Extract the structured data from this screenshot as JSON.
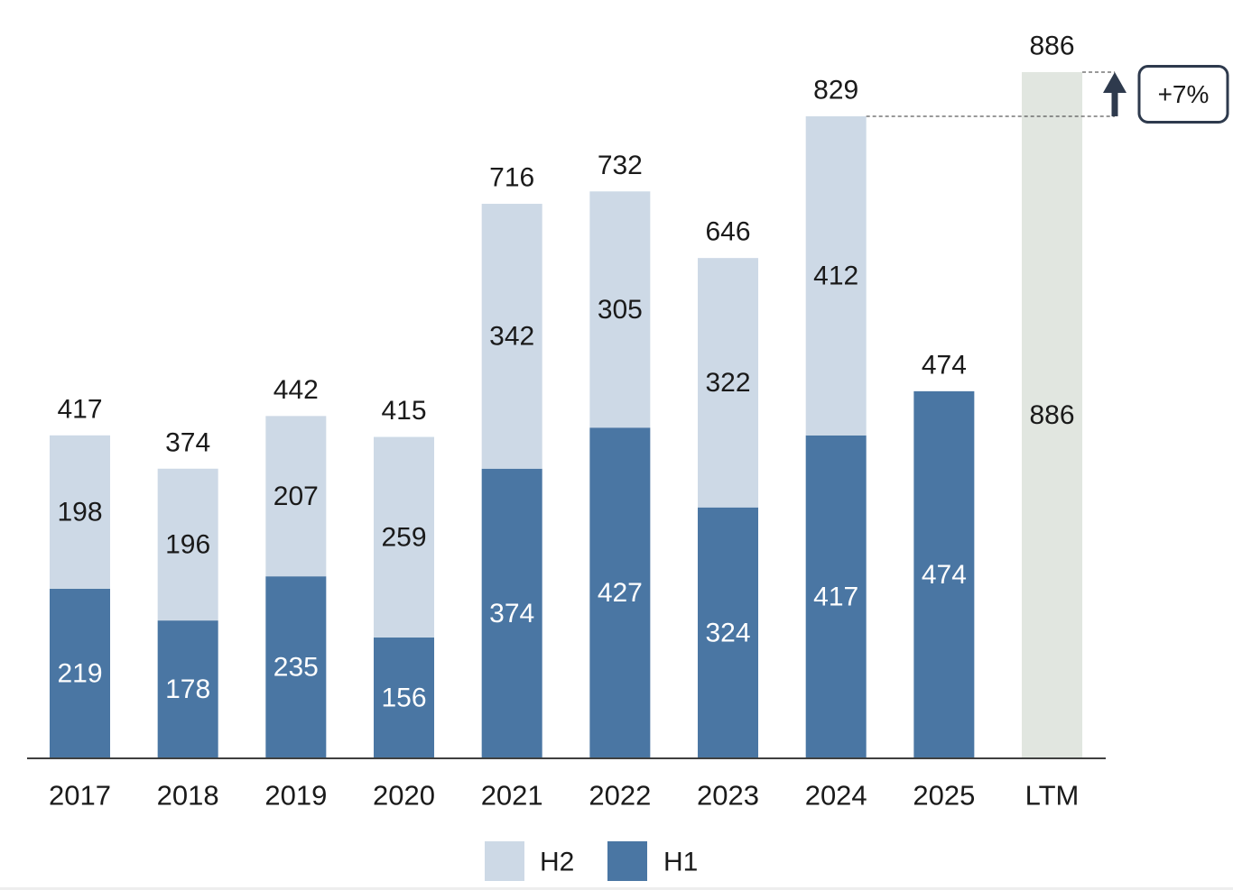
{
  "chart_data": {
    "type": "bar",
    "stacked": true,
    "categories": [
      "2017",
      "2018",
      "2019",
      "2020",
      "2021",
      "2022",
      "2023",
      "2024",
      "2025",
      "LTM"
    ],
    "series": [
      {
        "name": "H1",
        "color": "#4a76a3",
        "label_color": "#ffffff",
        "values": [
          219,
          178,
          235,
          156,
          374,
          427,
          324,
          417,
          474,
          null
        ]
      },
      {
        "name": "H2",
        "color": "#cdd9e6",
        "label_color": "#1a1a1a",
        "values": [
          198,
          196,
          207,
          259,
          342,
          305,
          322,
          412,
          null,
          null
        ]
      },
      {
        "color": "#e1e6e0",
        "label_color": "#1a1a1a",
        "values": [
          null,
          null,
          null,
          null,
          null,
          null,
          null,
          null,
          null,
          886
        ]
      }
    ],
    "totals": [
      417,
      374,
      442,
      415,
      716,
      732,
      646,
      829,
      474,
      886
    ],
    "annotation": {
      "text": "+7%",
      "from_value": 829,
      "to_value": 886,
      "color": "#2e3a4d"
    },
    "legend_position": "bottom",
    "y_axis_visible": false,
    "gridlines": false,
    "axis_color": "#404040",
    "text_color": "#1a1a1a"
  }
}
